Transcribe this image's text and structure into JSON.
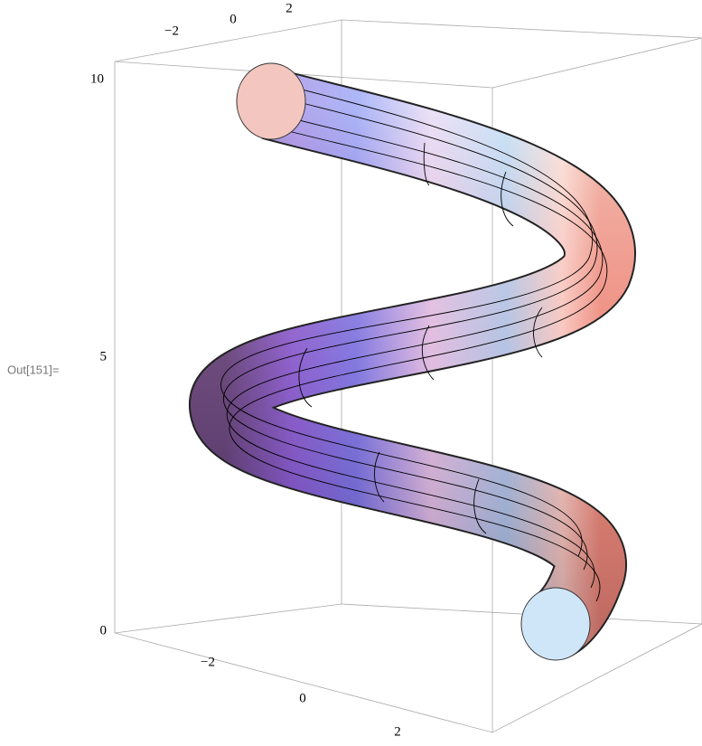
{
  "output_label": "Out[151]=",
  "axes": {
    "top_ticks": [
      "−2",
      "0",
      "2"
    ],
    "z_ticks": [
      "10",
      "5",
      "0"
    ],
    "bottom_ticks": [
      "−2",
      "0",
      "2"
    ]
  }
}
